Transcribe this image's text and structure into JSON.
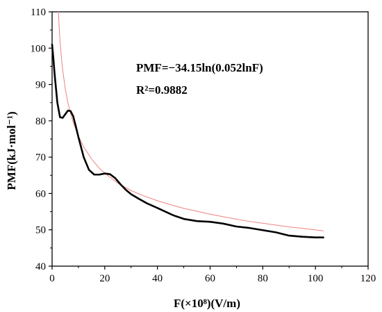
{
  "chart_data": {
    "type": "line",
    "xlabel": "F(×10⁸)(V/m)",
    "ylabel": "PMF(kJ·mol⁻¹)",
    "xlim": [
      0,
      120
    ],
    "ylim": [
      40,
      110
    ],
    "xticks": [
      "0",
      "20",
      "40",
      "60",
      "80",
      "100",
      "120"
    ],
    "yticks": [
      "40",
      "50",
      "60",
      "70",
      "80",
      "90",
      "100",
      "110"
    ],
    "grid": false,
    "legend": "none",
    "annotations": [
      "PMF=−34.15ln(0.052lnF)",
      "R²=0.9882"
    ],
    "series": [
      {
        "color": "#000000",
        "x": [
          0,
          0.5,
          1,
          2,
          3,
          4,
          5,
          6,
          7,
          8,
          9,
          10,
          12,
          14,
          16,
          18,
          20,
          22,
          24,
          26,
          28,
          30,
          33,
          36,
          40,
          43,
          46,
          50,
          55,
          60,
          65,
          70,
          75,
          80,
          85,
          90,
          95,
          100,
          103
        ],
        "y": [
          101,
          97,
          92.5,
          85,
          81,
          80.8,
          81.8,
          82.8,
          82.7,
          81.3,
          78.5,
          75.5,
          70,
          66.5,
          65.2,
          65.2,
          65.5,
          65.3,
          64.2,
          62.5,
          61,
          59.8,
          58.5,
          57.3,
          56,
          55,
          54,
          53,
          52.4,
          52.2,
          51.7,
          50.9,
          50.5,
          49.9,
          49.3,
          48.4,
          48.1,
          47.9,
          47.9
        ]
      },
      {
        "color": "#f08080",
        "x": [
          2.4,
          2.7,
          3,
          3.5,
          4,
          5,
          6,
          7,
          8,
          10,
          12,
          15,
          18,
          20,
          25,
          30,
          35,
          40,
          45,
          50,
          55,
          60,
          65,
          70,
          75,
          80,
          85,
          90,
          95,
          100,
          103
        ],
        "y": [
          110,
          105.5,
          102,
          97.6,
          94.1,
          88.8,
          85,
          82,
          79.6,
          75.8,
          72.8,
          69.5,
          66.9,
          65.6,
          62.8,
          60.8,
          59.3,
          58,
          56.9,
          55.9,
          55.1,
          54.3,
          53.6,
          52.9,
          52.3,
          51.8,
          51.3,
          50.8,
          50.4,
          50,
          49.7
        ]
      }
    ]
  }
}
